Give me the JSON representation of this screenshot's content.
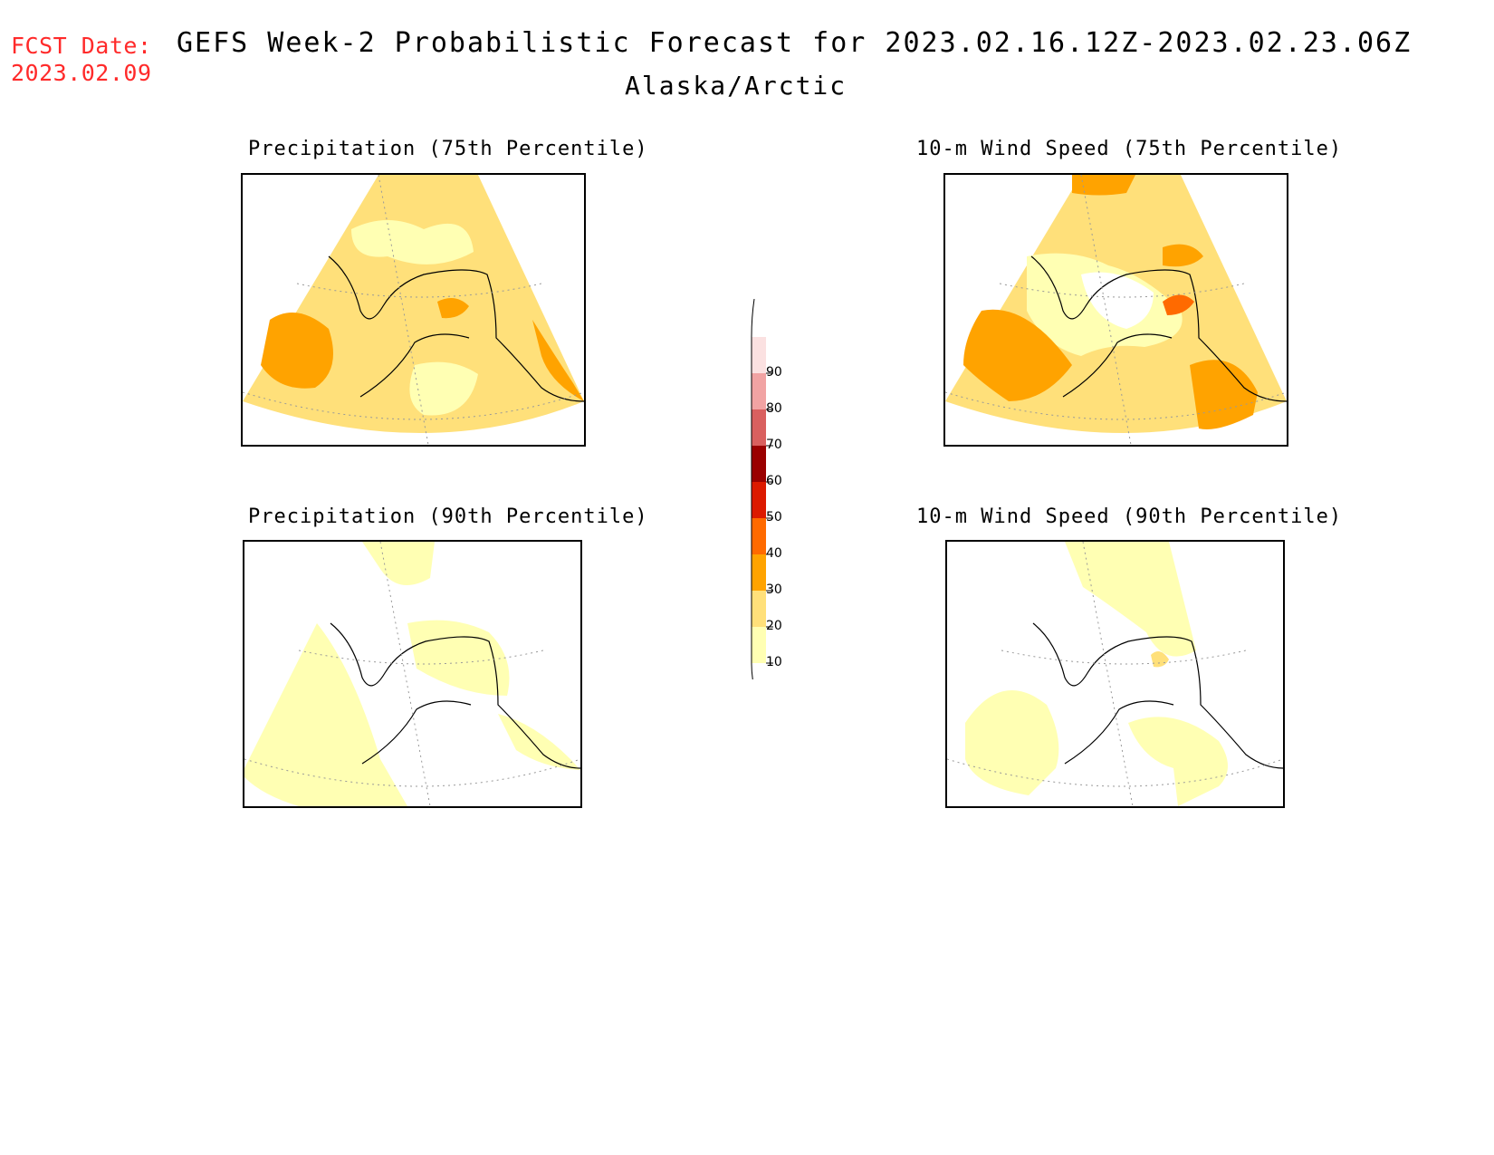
{
  "header": {
    "fcst_label": "FCST Date:",
    "fcst_date": "2023.02.09",
    "title": "GEFS Week-2 Probabilistic Forecast for 2023.02.16.12Z-2023.02.23.06Z",
    "subtitle": "Alaska/Arctic"
  },
  "panels": [
    {
      "title": "Precipitation (75th Percentile)"
    },
    {
      "title": "10-m Wind Speed (75th Percentile)"
    },
    {
      "title": "Precipitation (90th Percentile)"
    },
    {
      "title": "10-m Wind Speed (90th Percentile)"
    }
  ],
  "legend": {
    "labels": [
      "90",
      "80",
      "70",
      "60",
      "50",
      "40",
      "30",
      "20",
      "10"
    ],
    "colors": [
      "#fbe1e1",
      "#f1a3a3",
      "#d9605f",
      "#9a0000",
      "#dc1a00",
      "#ff6a00",
      "#ffa300",
      "#ffe07a",
      "#ffffb3"
    ]
  },
  "colors": {
    "fcst": "#ff2a2a",
    "c10": "#ffffb3",
    "c20": "#ffe07a",
    "c30": "#ffa300",
    "c40": "#ff6a00"
  }
}
